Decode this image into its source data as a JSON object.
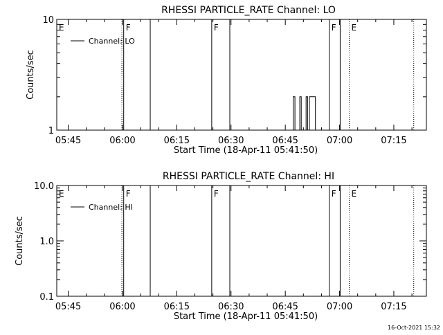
{
  "footer": {
    "timestamp": "16-Oct-2021 15:32"
  },
  "chart_data": [
    {
      "type": "line",
      "title": "RHESSI PARTICLE_RATE Channel: LO",
      "xlabel": "Start Time (18-Apr-11 05:41:50)",
      "ylabel": "Counts/sec",
      "yscale": "log",
      "ylim": [
        1,
        10
      ],
      "xlim": [
        "05:41:50",
        "07:24:00"
      ],
      "x_ticks": [
        "05:45",
        "06:00",
        "06:15",
        "06:30",
        "06:45",
        "07:00",
        "07:15"
      ],
      "y_ticks": [
        "1",
        "10"
      ],
      "legend": {
        "position": "top-left",
        "entries": [
          "Channel: LO"
        ]
      },
      "series": [
        {
          "name": "Channel: LO",
          "points": [
            [
              "06:47:10",
              1
            ],
            [
              "06:47:10",
              2
            ],
            [
              "06:47:40",
              2
            ],
            [
              "06:47:40",
              1
            ],
            [
              "06:49:00",
              1
            ],
            [
              "06:49:00",
              2
            ],
            [
              "06:49:25",
              2
            ],
            [
              "06:49:25",
              1
            ],
            [
              "06:50:45",
              1
            ],
            [
              "06:50:45",
              2
            ],
            [
              "06:51:10",
              2
            ],
            [
              "06:51:10",
              1
            ],
            [
              "06:51:40",
              1
            ],
            [
              "06:51:40",
              2
            ],
            [
              "06:53:20",
              2
            ],
            [
              "06:53:20",
              1
            ]
          ]
        }
      ],
      "markers": [
        {
          "time": "05:41:50",
          "label": "E",
          "style": "solid"
        },
        {
          "time": "05:59:50",
          "label": "",
          "style": "dotted"
        },
        {
          "time": "06:00:20",
          "label": "F",
          "style": "solid"
        },
        {
          "time": "06:07:40",
          "label": "",
          "style": "solid"
        },
        {
          "time": "06:24:40",
          "label": "F",
          "style": "solid"
        },
        {
          "time": "06:29:40",
          "label": "",
          "style": "solid"
        },
        {
          "time": "06:57:10",
          "label": "F",
          "style": "solid"
        },
        {
          "time": "07:00:10",
          "label": "",
          "style": "solid"
        },
        {
          "time": "07:02:40",
          "label": "E",
          "style": "dotted"
        },
        {
          "time": "07:20:30",
          "label": "",
          "style": "dotted"
        }
      ]
    },
    {
      "type": "line",
      "title": "RHESSI PARTICLE_RATE Channel: HI",
      "xlabel": "Start Time (18-Apr-11 05:41:50)",
      "ylabel": "Counts/sec",
      "yscale": "log",
      "ylim": [
        0.1,
        10
      ],
      "xlim": [
        "05:41:50",
        "07:24:00"
      ],
      "x_ticks": [
        "05:45",
        "06:00",
        "06:15",
        "06:30",
        "06:45",
        "07:00",
        "07:15"
      ],
      "y_ticks": [
        "0.1",
        "1.0",
        "10.0"
      ],
      "legend": {
        "position": "top-left",
        "entries": [
          "Channel: HI"
        ]
      },
      "series": [
        {
          "name": "Channel: HI",
          "points": []
        }
      ],
      "markers": [
        {
          "time": "05:41:50",
          "label": "E",
          "style": "solid"
        },
        {
          "time": "05:59:50",
          "label": "",
          "style": "dotted"
        },
        {
          "time": "06:00:20",
          "label": "F",
          "style": "solid"
        },
        {
          "time": "06:07:40",
          "label": "",
          "style": "solid"
        },
        {
          "time": "06:24:40",
          "label": "F",
          "style": "solid"
        },
        {
          "time": "06:29:40",
          "label": "",
          "style": "solid"
        },
        {
          "time": "06:57:10",
          "label": "F",
          "style": "solid"
        },
        {
          "time": "07:00:10",
          "label": "",
          "style": "solid"
        },
        {
          "time": "07:02:40",
          "label": "E",
          "style": "dotted"
        },
        {
          "time": "07:20:30",
          "label": "",
          "style": "dotted"
        }
      ]
    }
  ]
}
